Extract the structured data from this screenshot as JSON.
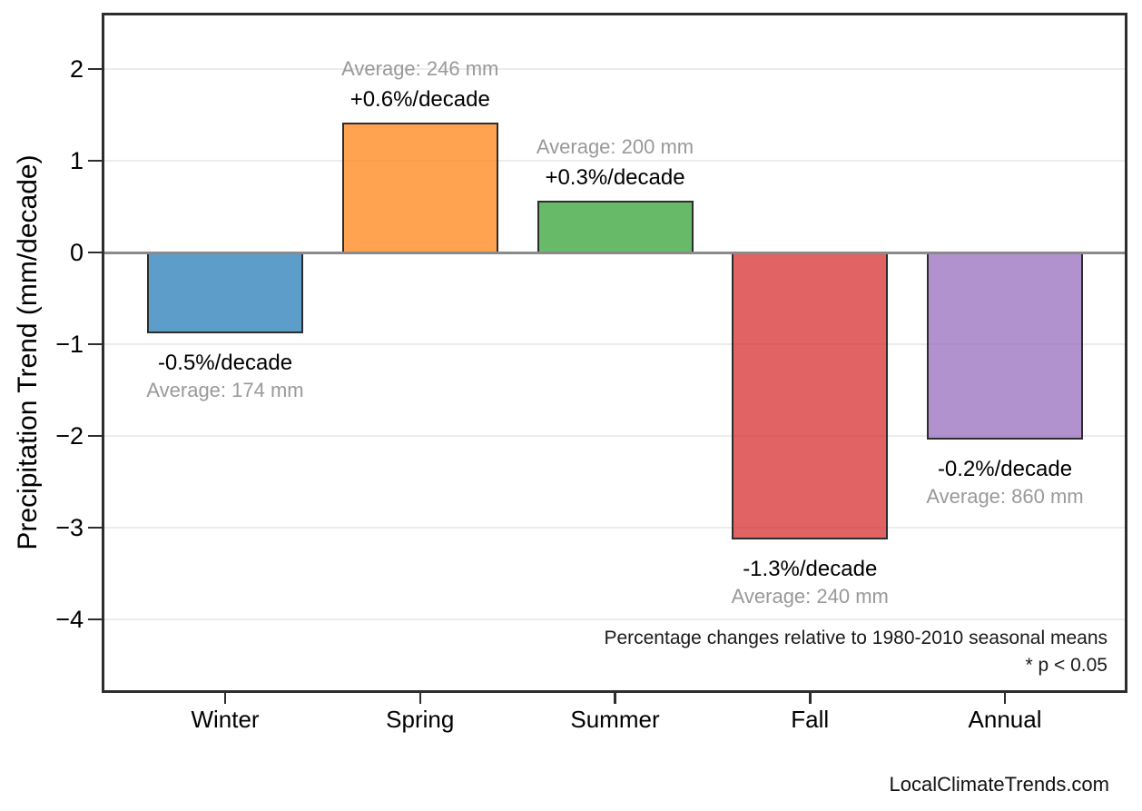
{
  "chart_data": {
    "type": "bar",
    "title": "",
    "ylabel": "Precipitation Trend (mm/decade)",
    "xlabel": "",
    "categories": [
      "Winter",
      "Spring",
      "Summer",
      "Fall",
      "Annual"
    ],
    "values": [
      -0.87,
      1.42,
      0.56,
      -3.12,
      -2.03
    ],
    "pct_per_decade": [
      -0.5,
      0.6,
      0.3,
      -1.3,
      -0.2
    ],
    "averages_mm": [
      174,
      246,
      200,
      240,
      860
    ],
    "bar_labels_black": [
      "-0.5%/decade",
      "+0.6%/decade",
      "+0.3%/decade",
      "-1.3%/decade",
      "-0.2%/decade"
    ],
    "bar_labels_gray": [
      "Average: 174 mm",
      "Average: 246 mm",
      "Average: 200 mm",
      "Average: 240 mm",
      "Average: 860 mm"
    ],
    "yticks": [
      2,
      1,
      0,
      -1,
      -2,
      -3,
      -4
    ],
    "ytick_labels": [
      "2",
      "1",
      "0",
      "−1",
      "−2",
      "−3",
      "−4"
    ],
    "ylim": [
      -4.8,
      2.6
    ],
    "grid": true,
    "legend": false,
    "annotations": [
      "Percentage changes relative to 1980-2010 seasonal means",
      "* p < 0.05"
    ],
    "colors": {
      "bars_rgba": [
        "rgba(31,119,180,0.72)",
        "rgba(255,127,14,0.72)",
        "rgba(44,160,44,0.72)",
        "rgba(214,39,40,0.72)",
        "rgba(148,103,189,0.72)"
      ],
      "bar_edge": "#2d2d2d",
      "grid": "#ececec",
      "zero_line": "#8a8a8a",
      "axis_border": "#2d2d2d",
      "gray_text": "#999999",
      "black_text": "#000000"
    }
  },
  "footer": {
    "watermark": "LocalClimateTrends.com"
  }
}
